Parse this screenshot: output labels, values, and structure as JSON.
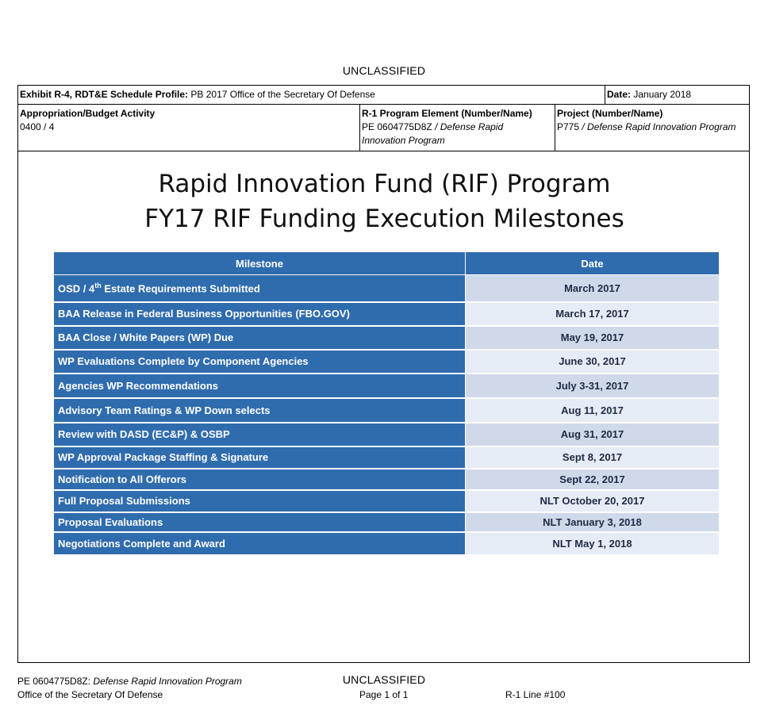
{
  "classification": "UNCLASSIFIED",
  "header": {
    "exhibit_label": "Exhibit R-4, RDT&E Schedule Profile:",
    "exhibit_value": "PB 2017 Office of the Secretary Of Defense",
    "date_label": "Date:",
    "date_value": "January 2018",
    "approp_label": "Appropriation/Budget Activity",
    "approp_value": "0400 / 4",
    "pe_label": "R-1 Program Element (Number/Name)",
    "pe_number": "PE 0604775D8Z",
    "pe_sep": " / ",
    "pe_name_line1": "Defense Rapid",
    "pe_name_line2": "Innovation Program",
    "project_label": "Project (Number/Name)",
    "project_number": "P775",
    "project_sep": " / ",
    "project_name": "Defense Rapid Innovation Program"
  },
  "title_line1": "Rapid Innovation Fund (RIF) Program",
  "title_line2": "FY17 RIF Funding Execution Milestones",
  "table": {
    "col_milestone": "Milestone",
    "col_date": "Date",
    "row0_pre": "OSD / 4",
    "row0_sup": "th",
    "row0_post": " Estate Requirements Submitted",
    "rows": [
      {
        "milestone": "OSD / 4th Estate Requirements Submitted",
        "date": "March 2017"
      },
      {
        "milestone": "BAA Release in Federal Business Opportunities (FBO.GOV)",
        "date": "March 17, 2017"
      },
      {
        "milestone": "BAA Close / White Papers (WP) Due",
        "date": "May 19, 2017"
      },
      {
        "milestone": "WP Evaluations Complete by  Component Agencies",
        "date": "June 30, 2017"
      },
      {
        "milestone": "Agencies  WP Recommendations",
        "date": "July 3-31, 2017"
      },
      {
        "milestone": "Advisory Team Ratings & WP Down selects",
        "date": "Aug 11, 2017"
      },
      {
        "milestone": "Review with DASD (EC&P) & OSBP",
        "date": "Aug 31, 2017"
      },
      {
        "milestone": "WP Approval Package Staffing & Signature",
        "date": "Sept 8, 2017"
      },
      {
        "milestone": "Notification to All Offerors",
        "date": "Sept 22, 2017"
      },
      {
        "milestone": "Full Proposal Submissions",
        "date": "NLT October 20, 2017"
      },
      {
        "milestone": "Proposal Evaluations",
        "date": "NLT January 3, 2018"
      },
      {
        "milestone": "Negotiations Complete and Award",
        "date": "NLT May 1, 2018"
      }
    ]
  },
  "footer": {
    "pe_number": "PE 0604775D8Z:",
    "pe_name": " Defense Rapid Innovation Program",
    "org": "Office of the Secretary Of Defense",
    "page": "Page 1 of 1",
    "line": "R-1 Line #100"
  }
}
